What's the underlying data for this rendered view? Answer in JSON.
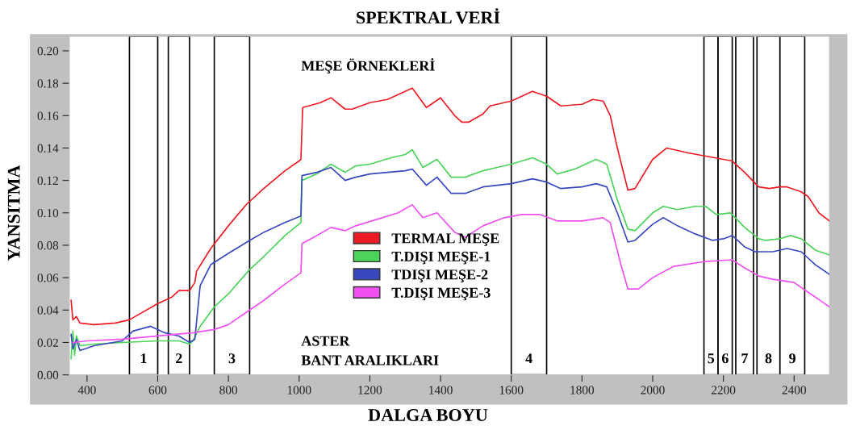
{
  "chart_data": {
    "type": "line",
    "title": "SPEKTRAL VERİ",
    "xlabel": "DALGA BOYU",
    "ylabel": "YANSITMA",
    "annotations": [
      "MEŞE ÖRNEKLERİ",
      "ASTER\nBANT ARALIKLARI"
    ],
    "xlim": [
      350,
      2500
    ],
    "ylim": [
      0,
      0.209
    ],
    "xticks": [
      400,
      600,
      800,
      1000,
      1200,
      1400,
      1600,
      1800,
      2000,
      2200,
      2400
    ],
    "yticks": [
      {
        "value": 0,
        "label": "0.00"
      },
      {
        "value": 0.02,
        "label": "0.02"
      },
      {
        "value": 0.04,
        "label": "0.04"
      },
      {
        "value": 0.06,
        "label": "0.06"
      },
      {
        "value": 0.08,
        "label": "0.08"
      },
      {
        "value": 0.1,
        "label": "0.10"
      },
      {
        "value": 0.12,
        "label": "0.12"
      },
      {
        "value": 0.14,
        "label": "0.14"
      },
      {
        "value": 0.16,
        "label": "0.16"
      },
      {
        "value": 0.18,
        "label": "0.18"
      },
      {
        "value": 0.2,
        "label": "0.20"
      }
    ],
    "grid": false,
    "legend": "center",
    "marker": "none",
    "line_style": "solid",
    "bands": [
      {
        "axis": "x",
        "from": 520,
        "to": 600,
        "label": "1"
      },
      {
        "axis": "x",
        "from": 630,
        "to": 690,
        "label": "2"
      },
      {
        "axis": "x",
        "from": 760,
        "to": 860,
        "label": "3"
      },
      {
        "axis": "x",
        "from": 1600,
        "to": 1700,
        "label": "4"
      },
      {
        "axis": "x",
        "from": 2145,
        "to": 2185,
        "label": "5"
      },
      {
        "axis": "x",
        "from": 2185,
        "to": 2225,
        "label": "6"
      },
      {
        "axis": "x",
        "from": 2235,
        "to": 2285,
        "label": "7"
      },
      {
        "axis": "x",
        "from": 2295,
        "to": 2360,
        "label": "8"
      },
      {
        "axis": "x",
        "from": 2360,
        "to": 2430,
        "label": "9"
      }
    ],
    "series": [
      {
        "name": "TERMAL MEŞE",
        "color": "#ed1c24",
        "x": [
          355,
          360,
          370,
          380,
          420,
          480,
          520,
          600,
          640,
          660,
          690,
          705,
          710,
          750,
          800,
          850,
          900,
          960,
          1000,
          1005,
          1010,
          1060,
          1090,
          1130,
          1150,
          1200,
          1250,
          1290,
          1320,
          1360,
          1400,
          1440,
          1460,
          1480,
          1520,
          1540,
          1600,
          1660,
          1700,
          1740,
          1800,
          1830,
          1860,
          1880,
          1900,
          1930,
          1950,
          2000,
          2040,
          2100,
          2150,
          2200,
          2225,
          2260,
          2300,
          2330,
          2360,
          2380,
          2420,
          2440,
          2470,
          2500
        ],
        "values": [
          0.046,
          0.034,
          0.036,
          0.032,
          0.031,
          0.032,
          0.034,
          0.044,
          0.048,
          0.052,
          0.052,
          0.057,
          0.064,
          0.078,
          0.092,
          0.105,
          0.115,
          0.126,
          0.132,
          0.133,
          0.165,
          0.168,
          0.171,
          0.164,
          0.164,
          0.168,
          0.17,
          0.174,
          0.177,
          0.165,
          0.171,
          0.16,
          0.156,
          0.156,
          0.161,
          0.166,
          0.169,
          0.175,
          0.172,
          0.166,
          0.167,
          0.17,
          0.169,
          0.16,
          0.14,
          0.114,
          0.115,
          0.133,
          0.14,
          0.137,
          0.135,
          0.133,
          0.132,
          0.125,
          0.116,
          0.115,
          0.116,
          0.116,
          0.113,
          0.11,
          0.1,
          0.095
        ]
      },
      {
        "name": "T.DIŞI MEŞE-1",
        "color": "#4cd45a",
        "x": [
          355,
          360,
          365,
          370,
          380,
          420,
          500,
          600,
          660,
          690,
          700,
          720,
          760,
          800,
          860,
          900,
          960,
          1005,
          1008,
          1050,
          1090,
          1130,
          1160,
          1200,
          1260,
          1300,
          1320,
          1350,
          1390,
          1430,
          1470,
          1520,
          1560,
          1600,
          1660,
          1700,
          1730,
          1780,
          1840,
          1870,
          1900,
          1930,
          1950,
          2000,
          2030,
          2070,
          2120,
          2150,
          2180,
          2220,
          2260,
          2300,
          2320,
          2360,
          2390,
          2420,
          2460,
          2500
        ],
        "values": [
          0.01,
          0.027,
          0.012,
          0.024,
          0.018,
          0.019,
          0.02,
          0.021,
          0.021,
          0.019,
          0.021,
          0.03,
          0.042,
          0.05,
          0.065,
          0.073,
          0.086,
          0.094,
          0.12,
          0.124,
          0.13,
          0.125,
          0.129,
          0.13,
          0.134,
          0.136,
          0.139,
          0.128,
          0.133,
          0.122,
          0.122,
          0.126,
          0.128,
          0.13,
          0.134,
          0.13,
          0.124,
          0.127,
          0.133,
          0.13,
          0.108,
          0.09,
          0.089,
          0.1,
          0.104,
          0.102,
          0.104,
          0.104,
          0.099,
          0.1,
          0.091,
          0.084,
          0.083,
          0.084,
          0.086,
          0.084,
          0.077,
          0.074
        ]
      },
      {
        "name": "TDIŞI MEŞE-2",
        "color": "#3a48c0",
        "x": [
          355,
          360,
          370,
          380,
          420,
          500,
          530,
          580,
          620,
          660,
          690,
          705,
          720,
          750,
          800,
          860,
          900,
          960,
          1005,
          1008,
          1050,
          1090,
          1130,
          1160,
          1200,
          1300,
          1320,
          1360,
          1390,
          1430,
          1470,
          1520,
          1600,
          1660,
          1700,
          1740,
          1800,
          1840,
          1870,
          1900,
          1930,
          1950,
          2000,
          2030,
          2070,
          2120,
          2170,
          2200,
          2225,
          2260,
          2290,
          2340,
          2380,
          2420,
          2460,
          2500
        ],
        "values": [
          0.025,
          0.016,
          0.022,
          0.015,
          0.018,
          0.021,
          0.027,
          0.03,
          0.026,
          0.024,
          0.02,
          0.022,
          0.055,
          0.068,
          0.075,
          0.083,
          0.088,
          0.094,
          0.098,
          0.123,
          0.125,
          0.128,
          0.12,
          0.122,
          0.124,
          0.126,
          0.127,
          0.117,
          0.122,
          0.112,
          0.112,
          0.116,
          0.118,
          0.121,
          0.119,
          0.115,
          0.116,
          0.118,
          0.116,
          0.1,
          0.082,
          0.083,
          0.093,
          0.097,
          0.092,
          0.087,
          0.083,
          0.084,
          0.086,
          0.079,
          0.076,
          0.076,
          0.078,
          0.076,
          0.068,
          0.062
        ]
      },
      {
        "name": "T.DIŞI MEŞE-3",
        "color": "#f050f0",
        "x": [
          360,
          400,
          500,
          600,
          700,
          760,
          800,
          860,
          900,
          960,
          1005,
          1008,
          1050,
          1090,
          1130,
          1160,
          1220,
          1280,
          1320,
          1350,
          1390,
          1440,
          1470,
          1520,
          1580,
          1630,
          1680,
          1730,
          1800,
          1860,
          1880,
          1910,
          1930,
          1960,
          2000,
          2060,
          2150,
          2225,
          2260,
          2300,
          2340,
          2400,
          2440,
          2500
        ],
        "values": [
          0.02,
          0.021,
          0.022,
          0.024,
          0.026,
          0.028,
          0.031,
          0.04,
          0.046,
          0.056,
          0.063,
          0.081,
          0.086,
          0.091,
          0.089,
          0.092,
          0.096,
          0.1,
          0.105,
          0.097,
          0.1,
          0.088,
          0.085,
          0.092,
          0.097,
          0.099,
          0.099,
          0.095,
          0.095,
          0.097,
          0.094,
          0.068,
          0.053,
          0.053,
          0.06,
          0.067,
          0.07,
          0.071,
          0.066,
          0.061,
          0.059,
          0.057,
          0.051,
          0.042
        ]
      }
    ]
  }
}
